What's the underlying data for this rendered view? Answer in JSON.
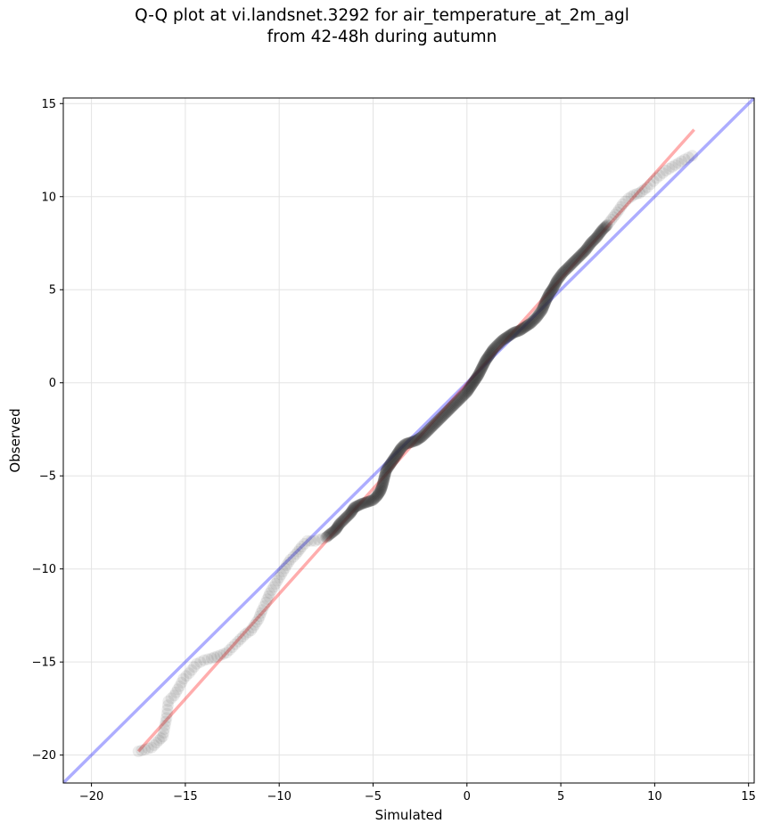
{
  "chart_data": {
    "type": "scatter",
    "title_lines": [
      "Q-Q plot at vi.landsnet.3292 for air_temperature_at_2m_agl",
      "from 42-48h during autumn"
    ],
    "xlabel": "Simulated",
    "ylabel": "Observed",
    "xlim": [
      -21.5,
      15.3
    ],
    "ylim": [
      -21.5,
      15.3
    ],
    "xticks": [
      -20,
      -15,
      -10,
      -5,
      0,
      5,
      10,
      15
    ],
    "yticks": [
      -20,
      -15,
      -10,
      -5,
      0,
      5,
      10,
      15
    ],
    "grid": true,
    "identity_line": {
      "color": "#0000ff",
      "x": [
        -21.5,
        15.3
      ],
      "y": [
        -21.5,
        15.3
      ]
    },
    "fit_line": {
      "color": "#ff0000",
      "x": [
        -17.5,
        12.1
      ],
      "y": [
        -19.8,
        13.6
      ]
    },
    "quantiles": [
      [
        -17.5,
        -19.8
      ],
      [
        -16.8,
        -19.6
      ],
      [
        -16.4,
        -19.2
      ],
      [
        -16.2,
        -19.0
      ],
      [
        -16.0,
        -18.0
      ],
      [
        -15.9,
        -17.1
      ],
      [
        -15.6,
        -16.8
      ],
      [
        -15.3,
        -16.3
      ],
      [
        -15.1,
        -15.9
      ],
      [
        -14.8,
        -15.6
      ],
      [
        -14.4,
        -15.1
      ],
      [
        -14.0,
        -14.9
      ],
      [
        -13.6,
        -14.8
      ],
      [
        -13.3,
        -14.7
      ],
      [
        -12.8,
        -14.5
      ],
      [
        -12.2,
        -13.9
      ],
      [
        -11.8,
        -13.5
      ],
      [
        -11.5,
        -13.3
      ],
      [
        -11.1,
        -12.7
      ],
      [
        -10.9,
        -12.2
      ],
      [
        -10.7,
        -11.8
      ],
      [
        -10.5,
        -11.3
      ],
      [
        -10.2,
        -10.8
      ],
      [
        -9.9,
        -10.3
      ],
      [
        -9.6,
        -9.8
      ],
      [
        -9.4,
        -9.5
      ],
      [
        -9.1,
        -9.2
      ],
      [
        -8.8,
        -8.8
      ],
      [
        -8.5,
        -8.5
      ],
      [
        -8.1,
        -8.5
      ],
      [
        -7.5,
        -8.3
      ],
      [
        -7.0,
        -7.9
      ],
      [
        -6.8,
        -7.6
      ],
      [
        -6.5,
        -7.3
      ],
      [
        -6.2,
        -7.0
      ],
      [
        -6.0,
        -6.7
      ],
      [
        -5.6,
        -6.5
      ],
      [
        -5.3,
        -6.4
      ],
      [
        -5.0,
        -6.3
      ],
      [
        -4.8,
        -6.1
      ],
      [
        -4.6,
        -5.8
      ],
      [
        -4.5,
        -5.5
      ],
      [
        -4.4,
        -5.1
      ],
      [
        -4.3,
        -4.7
      ],
      [
        -4.1,
        -4.4
      ],
      [
        -3.9,
        -4.1
      ],
      [
        -3.7,
        -3.8
      ],
      [
        -3.5,
        -3.5
      ],
      [
        -3.3,
        -3.3
      ],
      [
        -3.0,
        -3.2
      ],
      [
        -2.7,
        -3.1
      ],
      [
        -2.4,
        -2.9
      ],
      [
        -2.1,
        -2.6
      ],
      [
        -1.8,
        -2.3
      ],
      [
        -1.5,
        -2.0
      ],
      [
        -1.2,
        -1.7
      ],
      [
        -0.9,
        -1.4
      ],
      [
        -0.6,
        -1.1
      ],
      [
        -0.3,
        -0.8
      ],
      [
        0.0,
        -0.5
      ],
      [
        0.2,
        -0.2
      ],
      [
        0.4,
        0.1
      ],
      [
        0.6,
        0.4
      ],
      [
        0.8,
        0.8
      ],
      [
        1.0,
        1.2
      ],
      [
        1.2,
        1.5
      ],
      [
        1.4,
        1.8
      ],
      [
        1.6,
        2.0
      ],
      [
        1.9,
        2.3
      ],
      [
        2.2,
        2.5
      ],
      [
        2.5,
        2.7
      ],
      [
        2.8,
        2.8
      ],
      [
        3.1,
        3.0
      ],
      [
        3.4,
        3.2
      ],
      [
        3.7,
        3.5
      ],
      [
        4.0,
        3.9
      ],
      [
        4.2,
        4.4
      ],
      [
        4.4,
        4.8
      ],
      [
        4.6,
        5.1
      ],
      [
        4.8,
        5.5
      ],
      [
        5.1,
        5.9
      ],
      [
        5.4,
        6.2
      ],
      [
        5.7,
        6.5
      ],
      [
        6.0,
        6.8
      ],
      [
        6.3,
        7.1
      ],
      [
        6.6,
        7.5
      ],
      [
        6.9,
        7.8
      ],
      [
        7.2,
        8.2
      ],
      [
        7.5,
        8.5
      ],
      [
        7.8,
        8.9
      ],
      [
        8.1,
        9.3
      ],
      [
        8.3,
        9.6
      ],
      [
        8.6,
        9.9
      ],
      [
        8.9,
        10.1
      ],
      [
        9.2,
        10.2
      ],
      [
        9.6,
        10.5
      ],
      [
        10.1,
        11.0
      ],
      [
        10.6,
        11.4
      ],
      [
        11.1,
        11.7
      ],
      [
        11.6,
        12.0
      ],
      [
        12.0,
        12.2
      ]
    ]
  }
}
